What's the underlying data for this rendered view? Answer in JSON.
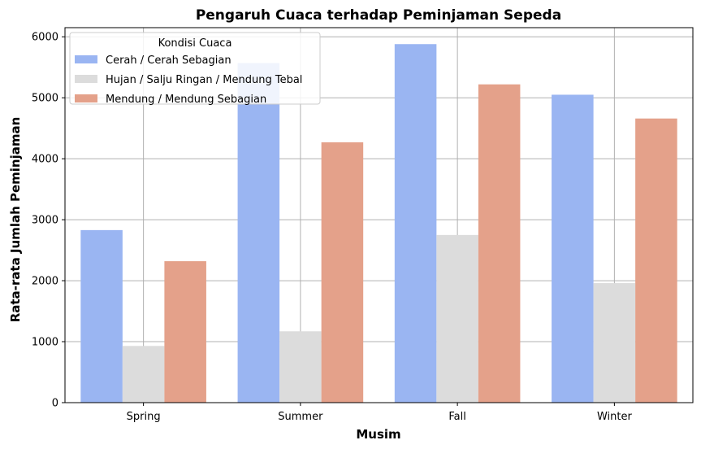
{
  "chart_data": {
    "type": "bar",
    "title": "Pengaruh Cuaca terhadap Peminjaman Sepeda",
    "xlabel": "Musim",
    "ylabel": "Rata-rata Jumlah Peminjaman",
    "categories": [
      "Spring",
      "Summer",
      "Fall",
      "Winter"
    ],
    "ylim": [
      0,
      6150
    ],
    "yticks": [
      0,
      1000,
      2000,
      3000,
      4000,
      5000,
      6000
    ],
    "grid": true,
    "legend": {
      "title": "Kondisi Cuaca",
      "placement": "top-left"
    },
    "series": [
      {
        "name": "Cerah / Cerah Sebagian",
        "color": "#9ab5f2",
        "values": [
          2830,
          5570,
          5880,
          5050
        ]
      },
      {
        "name": "Hujan / Salju Ringan / Mendung Tebal",
        "color": "#dcdcdc",
        "values": [
          930,
          1170,
          2750,
          1960
        ]
      },
      {
        "name": "Mendung / Mendung Sebagian",
        "color": "#e4a18a",
        "values": [
          2320,
          4270,
          5220,
          4660
        ]
      }
    ]
  }
}
